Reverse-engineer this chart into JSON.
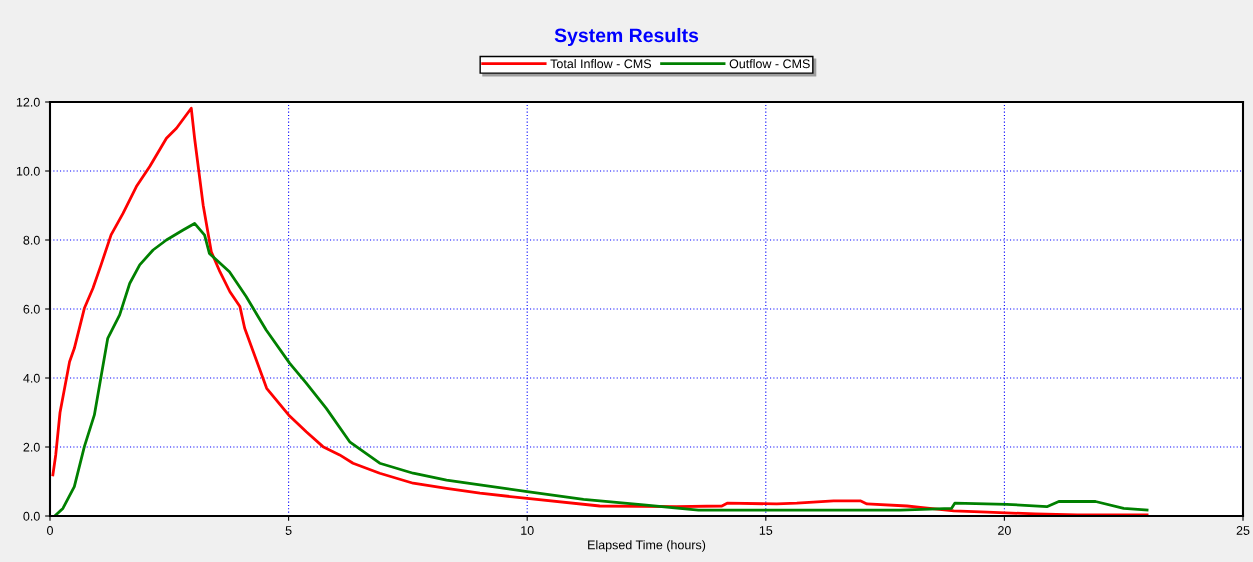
{
  "chart_data": {
    "type": "line",
    "title": "System Results",
    "xlabel": "Elapsed Time (hours)",
    "xlim": [
      0,
      25
    ],
    "ylim": [
      0,
      12
    ],
    "xticks": [
      0,
      5,
      10,
      15,
      20,
      25
    ],
    "yticks": [
      {
        "value": 0,
        "label": "0.0"
      },
      {
        "value": 2,
        "label": "2.0"
      },
      {
        "value": 4,
        "label": "4.0"
      },
      {
        "value": 6,
        "label": "6.0"
      },
      {
        "value": 8,
        "label": "8.0"
      },
      {
        "value": 10,
        "label": "10.0"
      },
      {
        "value": 12,
        "label": "12.0"
      }
    ],
    "grid": true,
    "legend": "top",
    "marker": "none",
    "line_style": "solid",
    "series": [
      {
        "name": "Total Inflow - CMS",
        "color": "#ff0000",
        "x": [
          0.06,
          0.12,
          0.21,
          0.41,
          0.51,
          0.72,
          0.9,
          1.07,
          1.28,
          1.53,
          1.81,
          2.09,
          2.44,
          2.65,
          2.96,
          3.03,
          3.21,
          3.38,
          3.56,
          3.77,
          3.98,
          4.08,
          4.26,
          4.54,
          5.0,
          5.37,
          5.72,
          6.07,
          6.35,
          6.91,
          7.61,
          8.31,
          9.01,
          10.0,
          11.52,
          13.13,
          14.08,
          14.19,
          15.23,
          15.65,
          16.42,
          16.98,
          17.12,
          17.96,
          18.24,
          18.94,
          19.64,
          20.65,
          21.53,
          22.99
        ],
        "values": [
          1.19,
          1.77,
          3.0,
          4.47,
          4.86,
          6.02,
          6.6,
          7.28,
          8.15,
          8.77,
          9.55,
          10.13,
          10.95,
          11.24,
          11.82,
          10.95,
          9.01,
          7.66,
          7.08,
          6.5,
          6.07,
          5.44,
          4.76,
          3.7,
          2.93,
          2.44,
          2.01,
          1.77,
          1.53,
          1.24,
          0.95,
          0.8,
          0.66,
          0.51,
          0.29,
          0.27,
          0.29,
          0.37,
          0.35,
          0.37,
          0.44,
          0.44,
          0.35,
          0.29,
          0.25,
          0.15,
          0.11,
          0.06,
          0.03,
          0.03
        ]
      },
      {
        "name": "Outflow - CMS",
        "color": "#008000",
        "x": [
          0.1,
          0.27,
          0.51,
          0.72,
          0.93,
          1.21,
          1.46,
          1.67,
          1.88,
          2.16,
          2.44,
          2.79,
          3.03,
          3.24,
          3.34,
          3.76,
          4.11,
          4.53,
          5.02,
          5.37,
          5.79,
          6.28,
          6.91,
          7.61,
          8.31,
          9.01,
          10.0,
          11.18,
          12.44,
          13.59,
          17.82,
          18.89,
          18.96,
          20.05,
          20.89,
          21.14,
          21.91,
          22.5,
          22.99
        ],
        "values": [
          0.0,
          0.22,
          0.85,
          2.01,
          2.93,
          5.15,
          5.83,
          6.74,
          7.28,
          7.71,
          8.0,
          8.29,
          8.48,
          8.14,
          7.61,
          7.08,
          6.36,
          5.39,
          4.43,
          3.85,
          3.12,
          2.15,
          1.53,
          1.24,
          1.04,
          0.9,
          0.71,
          0.48,
          0.32,
          0.17,
          0.17,
          0.22,
          0.37,
          0.34,
          0.27,
          0.42,
          0.42,
          0.22,
          0.17
        ]
      }
    ]
  }
}
